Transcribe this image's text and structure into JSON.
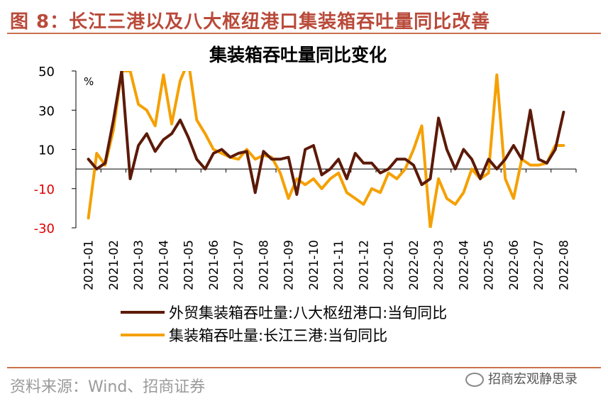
{
  "figure": {
    "title": "图 8：长江三港以及八大枢纽港口集装箱吞吐量同比改善",
    "source": "资料来源：Wind、招商证券",
    "watermark": "招商宏观静思录"
  },
  "colors": {
    "series1": "#5c1a08",
    "series2": "#f5a000",
    "neg_tick": "#e00000",
    "rule": "#c9714f"
  },
  "chart_data": {
    "type": "line",
    "title": "集装箱吞吐量同比变化",
    "unit_label": "%",
    "ylim": [
      -30,
      50
    ],
    "yticks": [
      50,
      30,
      10,
      -10,
      -30
    ],
    "categories": [
      "2021-01",
      "2021-02",
      "2021-03",
      "2021-04",
      "2021-05",
      "2021-06",
      "2021-07",
      "2021-08",
      "2021-09",
      "2021-10",
      "2021-11",
      "2021-12",
      "2022-01",
      "2022-02",
      "2022-03",
      "2022-04",
      "2022-05",
      "2022-06",
      "2022-07",
      "2022-08"
    ],
    "legend": [
      "外贸集装箱吞吐量:八大枢纽港口:当旬同比",
      "集装箱吞吐量:长江三港:当旬同比"
    ],
    "series": [
      {
        "name": "外贸集装箱吞吐量:八大枢纽港口:当旬同比",
        "x": [
          0,
          0.33,
          0.67,
          1,
          1.33,
          1.67,
          2,
          2.33,
          2.67,
          3,
          3.33,
          3.67,
          4,
          4.33,
          4.67,
          5,
          5.33,
          5.67,
          6,
          6.33,
          6.67,
          7,
          7.33,
          7.67,
          8,
          8.33,
          8.67,
          9,
          9.33,
          9.67,
          10,
          10.33,
          10.67,
          11,
          11.33,
          11.67,
          12,
          12.33,
          12.67,
          13,
          13.33,
          13.67,
          14,
          14.33,
          14.67,
          15,
          15.33,
          15.67,
          16,
          16.33,
          16.67,
          17,
          17.33,
          17.67,
          18,
          18.33,
          18.67,
          19
        ],
        "values": [
          5,
          0,
          3,
          25,
          50,
          -5,
          12,
          18,
          9,
          15,
          18,
          25,
          16,
          5,
          0,
          8,
          10,
          6,
          8,
          9,
          -12,
          9,
          5,
          5,
          6,
          -13,
          10,
          12,
          -3,
          0,
          5,
          -5,
          8,
          3,
          3,
          -2,
          0,
          5,
          5,
          2,
          -8,
          -5,
          26,
          10,
          0,
          10,
          5,
          -5,
          5,
          0,
          5,
          12,
          5,
          30,
          5,
          3,
          10,
          29
        ]
      },
      {
        "name": "集装箱吞吐量:长江三港:当旬同比",
        "x": [
          0,
          0.33,
          0.67,
          1,
          1.33,
          1.67,
          2,
          2.33,
          2.67,
          3,
          3.33,
          3.67,
          4,
          4.33,
          4.67,
          5,
          5.33,
          5.67,
          6,
          6.33,
          6.67,
          7,
          7.33,
          7.67,
          8,
          8.33,
          8.67,
          9,
          9.33,
          9.67,
          10,
          10.33,
          10.67,
          11,
          11.33,
          11.67,
          12,
          12.33,
          12.67,
          13,
          13.33,
          13.67,
          14,
          14.33,
          14.67,
          15,
          15.33,
          15.67,
          16,
          16.33,
          16.67,
          17,
          17.33,
          17.67,
          18,
          18.33,
          18.67,
          19
        ],
        "values": [
          -25,
          8,
          2,
          20,
          50,
          50,
          33,
          30,
          22,
          48,
          23,
          45,
          55,
          25,
          18,
          10,
          8,
          6,
          5,
          10,
          5,
          7,
          6,
          -2,
          -15,
          -5,
          -8,
          -5,
          -10,
          -5,
          -2,
          -12,
          -15,
          -18,
          -10,
          -12,
          -2,
          -5,
          0,
          10,
          22,
          -30,
          -5,
          -15,
          -18,
          -12,
          0,
          -5,
          -2,
          48,
          -5,
          -15,
          5,
          2,
          2,
          3,
          12,
          12
        ]
      }
    ]
  }
}
